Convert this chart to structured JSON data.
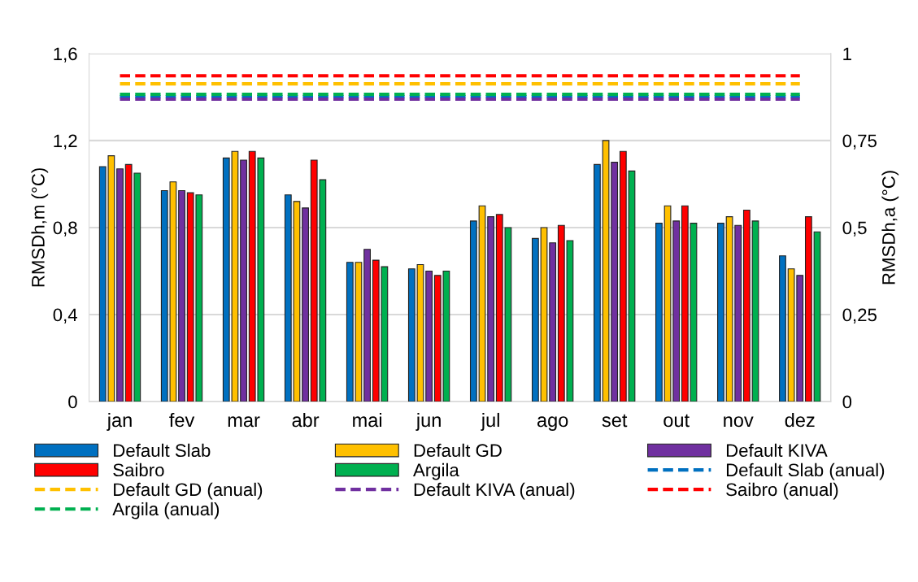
{
  "chart_data": {
    "type": "bar",
    "ylabel": "RMSDh,m (°C)",
    "y2label": "RMSDh,a (°C)",
    "categories": [
      "jan",
      "fev",
      "mar",
      "abr",
      "mai",
      "jun",
      "jul",
      "ago",
      "set",
      "out",
      "nov",
      "dez"
    ],
    "ylim": [
      0,
      1.6
    ],
    "yticks": [
      0,
      {
        "value": 0.4,
        "label": "0,4"
      },
      {
        "value": 0.8,
        "label": "0,8"
      },
      {
        "value": 1.2,
        "label": "1,2"
      },
      {
        "value": 1.6,
        "label": "1,6"
      }
    ],
    "y2lim": [
      0,
      1
    ],
    "y2ticks": [
      0,
      {
        "value": 0.25,
        "label": "0,25"
      },
      {
        "value": 0.5,
        "label": "0,5"
      },
      {
        "value": 0.75,
        "label": "0,75"
      },
      1
    ],
    "grid": "y",
    "legend": "bottom",
    "series": [
      {
        "name": "Default Slab",
        "color": "#0070c0",
        "values": [
          1.08,
          0.97,
          1.12,
          0.95,
          0.64,
          0.61,
          0.83,
          0.75,
          1.09,
          0.82,
          0.82,
          0.67
        ]
      },
      {
        "name": "Default GD",
        "color": "#ffc000",
        "values": [
          1.13,
          1.01,
          1.15,
          0.92,
          0.64,
          0.63,
          0.9,
          0.8,
          1.2,
          0.9,
          0.85,
          0.61
        ]
      },
      {
        "name": "Default KIVA",
        "color": "#7030a0",
        "values": [
          1.07,
          0.97,
          1.11,
          0.89,
          0.7,
          0.6,
          0.85,
          0.73,
          1.1,
          0.83,
          0.81,
          0.58
        ]
      },
      {
        "name": "Saibro",
        "color": "#ff0000",
        "values": [
          1.09,
          0.96,
          1.15,
          1.11,
          0.65,
          0.58,
          0.86,
          0.81,
          1.15,
          0.9,
          0.88,
          0.85
        ]
      },
      {
        "name": "Argila",
        "color": "#00b050",
        "values": [
          1.05,
          0.95,
          1.12,
          1.02,
          0.62,
          0.6,
          0.8,
          0.74,
          1.06,
          0.82,
          0.83,
          0.78
        ]
      },
      {
        "name": "Default Slab (anual)",
        "color": "#0070c0",
        "type": "line",
        "axis": "y2",
        "line_style": "dashed",
        "values": [
          0.876,
          0.876,
          0.876,
          0.876,
          0.876,
          0.876,
          0.876,
          0.876,
          0.876,
          0.876,
          0.876,
          0.876
        ]
      },
      {
        "name": "Default GD (anual)",
        "color": "#ffc000",
        "type": "line",
        "axis": "y2",
        "line_style": "dashed",
        "values": [
          0.913,
          0.913,
          0.913,
          0.913,
          0.913,
          0.913,
          0.913,
          0.913,
          0.913,
          0.913,
          0.913,
          0.913
        ]
      },
      {
        "name": "Default KIVA (anual)",
        "color": "#7030a0",
        "type": "line",
        "axis": "y2",
        "line_style": "dashed",
        "values": [
          0.869,
          0.869,
          0.869,
          0.869,
          0.869,
          0.869,
          0.869,
          0.869,
          0.869,
          0.869,
          0.869,
          0.869
        ]
      },
      {
        "name": "Saibro (anual)",
        "color": "#ff0000",
        "type": "line",
        "axis": "y2",
        "line_style": "dashed",
        "values": [
          0.936,
          0.936,
          0.936,
          0.936,
          0.936,
          0.936,
          0.936,
          0.936,
          0.936,
          0.936,
          0.936,
          0.936
        ]
      },
      {
        "name": "Argila (anual)",
        "color": "#00b050",
        "type": "line",
        "axis": "y2",
        "line_style": "dashed",
        "values": [
          0.883,
          0.883,
          0.883,
          0.883,
          0.883,
          0.883,
          0.883,
          0.883,
          0.883,
          0.883,
          0.883,
          0.883
        ]
      }
    ]
  }
}
